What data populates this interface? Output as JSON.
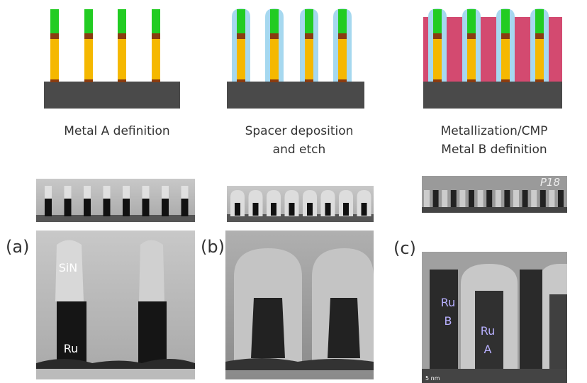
{
  "panels": [
    {
      "label": "(a)",
      "caption": [
        "Metal A definition"
      ],
      "annotations": [
        "SiN",
        "Ru"
      ]
    },
    {
      "label": "(b)",
      "caption": [
        "Spacer deposition",
        "and etch"
      ],
      "annotations": []
    },
    {
      "label": "(c)",
      "caption": [
        "Metallization/CMP",
        "Metal B definition"
      ],
      "annotations": [
        "Ru",
        "B",
        "Ru",
        "A"
      ],
      "inset_tag": "P18",
      "scale": "5 nm"
    }
  ]
}
